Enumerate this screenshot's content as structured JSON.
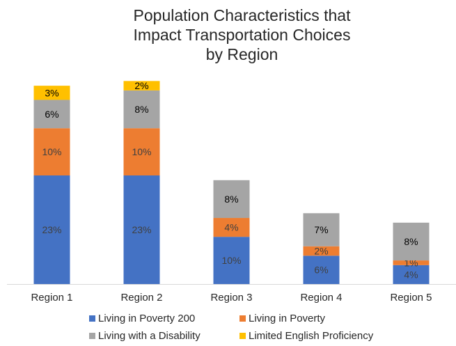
{
  "chart_data": {
    "type": "bar",
    "stacked": true,
    "title_lines": [
      "Population Characteristics that",
      "Impact Transportation Choices",
      "by Region"
    ],
    "categories": [
      "Region 1",
      "Region 2",
      "Region 3",
      "Region 4",
      "Region 5"
    ],
    "series": [
      {
        "name": "Living in Poverty 200",
        "color": "#4472C4",
        "values": [
          23,
          23,
          10,
          6,
          4
        ],
        "labels": [
          "23%",
          "23%",
          "10%",
          "6%",
          "4%"
        ],
        "label_color": "#404040"
      },
      {
        "name": "Living in Poverty",
        "color": "#ED7D31",
        "values": [
          10,
          10,
          4,
          2,
          1
        ],
        "labels": [
          "10%",
          "10%",
          "4%",
          "2%",
          "1%"
        ],
        "label_color": "#404040"
      },
      {
        "name": "Living with a Disability",
        "color": "#A5A5A5",
        "values": [
          6,
          8,
          8,
          7,
          8
        ],
        "labels": [
          "6%",
          "8%",
          "8%",
          "7%",
          "8%"
        ],
        "label_color": "#000000"
      },
      {
        "name": "Limited English Proficiency",
        "color": "#FFC000",
        "values": [
          3,
          2,
          0,
          0,
          0
        ],
        "labels": [
          "3%",
          "2%",
          "",
          "",
          ""
        ],
        "label_color": "#000000"
      }
    ],
    "ylim": [
      0,
      46
    ],
    "grid": false,
    "legend": "bottom"
  }
}
